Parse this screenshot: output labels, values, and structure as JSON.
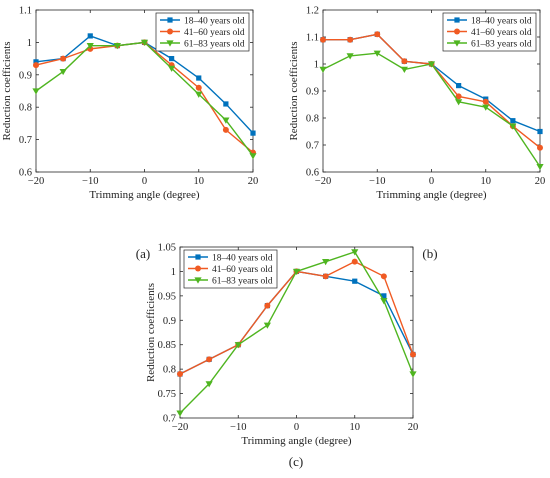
{
  "colors": {
    "series": [
      "#0072BD",
      "#F05A23",
      "#4FB520"
    ],
    "axis": "#262626"
  },
  "chart_data": [
    {
      "panel_label": "(a)",
      "type": "line",
      "xlabel": "Trimming angle (degree)",
      "ylabel": "Reduction coefficients",
      "xlim": [
        -20,
        20
      ],
      "ylim": [
        0.6,
        1.1
      ],
      "xticks": [
        -20,
        -10,
        0,
        10,
        20
      ],
      "yticks": [
        0.6,
        0.7,
        0.8,
        0.9,
        1,
        1.1
      ],
      "x": [
        -20,
        -15,
        -10,
        -5,
        0,
        5,
        10,
        15,
        20
      ],
      "legend_position": "top-right",
      "grid": false,
      "series": [
        {
          "name": "18–40 years old",
          "marker": "square",
          "values": [
            0.94,
            0.95,
            1.02,
            0.99,
            1.0,
            0.95,
            0.89,
            0.81,
            0.72
          ]
        },
        {
          "name": "41–60 years old",
          "marker": "circle",
          "values": [
            0.93,
            0.95,
            0.98,
            0.99,
            1.0,
            0.93,
            0.86,
            0.73,
            0.66
          ]
        },
        {
          "name": "61–83 years old",
          "marker": "triangle-down",
          "values": [
            0.85,
            0.91,
            0.99,
            0.99,
            1.0,
            0.92,
            0.84,
            0.76,
            0.65
          ]
        }
      ]
    },
    {
      "panel_label": "(b)",
      "type": "line",
      "xlabel": "Trimming angle (degree)",
      "ylabel": "Reduction coefficients",
      "xlim": [
        -20,
        20
      ],
      "ylim": [
        0.6,
        1.2
      ],
      "xticks": [
        -20,
        -10,
        0,
        10,
        20
      ],
      "yticks": [
        0.6,
        0.7,
        0.8,
        0.9,
        1,
        1.1,
        1.2
      ],
      "x": [
        -20,
        -15,
        -10,
        -5,
        0,
        5,
        10,
        15,
        20
      ],
      "legend_position": "top-right",
      "grid": false,
      "series": [
        {
          "name": "18–40 years old",
          "marker": "square",
          "values": [
            1.09,
            1.09,
            1.11,
            1.01,
            1.0,
            0.92,
            0.87,
            0.79,
            0.75
          ]
        },
        {
          "name": "41–60 years old",
          "marker": "circle",
          "values": [
            1.09,
            1.09,
            1.11,
            1.01,
            1.0,
            0.88,
            0.86,
            0.77,
            0.69
          ]
        },
        {
          "name": "61–83 years old",
          "marker": "triangle-down",
          "values": [
            0.98,
            1.03,
            1.04,
            0.98,
            1.0,
            0.86,
            0.84,
            0.77,
            0.62
          ]
        }
      ]
    },
    {
      "panel_label": "(c)",
      "type": "line",
      "xlabel": "Trimming angle (degree)",
      "ylabel": "Reduction coefficients",
      "xlim": [
        -20,
        20
      ],
      "ylim": [
        0.7,
        1.05
      ],
      "xticks": [
        -20,
        -10,
        0,
        10,
        20
      ],
      "yticks": [
        0.7,
        0.75,
        0.8,
        0.85,
        0.9,
        0.95,
        1,
        1.05
      ],
      "x": [
        -20,
        -15,
        -10,
        -5,
        0,
        5,
        10,
        15,
        20
      ],
      "legend_position": "top-left",
      "grid": false,
      "series": [
        {
          "name": "18–40 years old",
          "marker": "square",
          "values": [
            0.79,
            0.82,
            0.85,
            0.93,
            1.0,
            0.99,
            0.98,
            0.95,
            0.83
          ]
        },
        {
          "name": "41–60 years old",
          "marker": "circle",
          "values": [
            0.79,
            0.82,
            0.85,
            0.93,
            1.0,
            0.99,
            1.02,
            0.99,
            0.83
          ]
        },
        {
          "name": "61–83 years old",
          "marker": "triangle-down",
          "values": [
            0.71,
            0.77,
            0.85,
            0.89,
            1.0,
            1.02,
            1.04,
            0.94,
            0.79
          ]
        }
      ]
    }
  ]
}
